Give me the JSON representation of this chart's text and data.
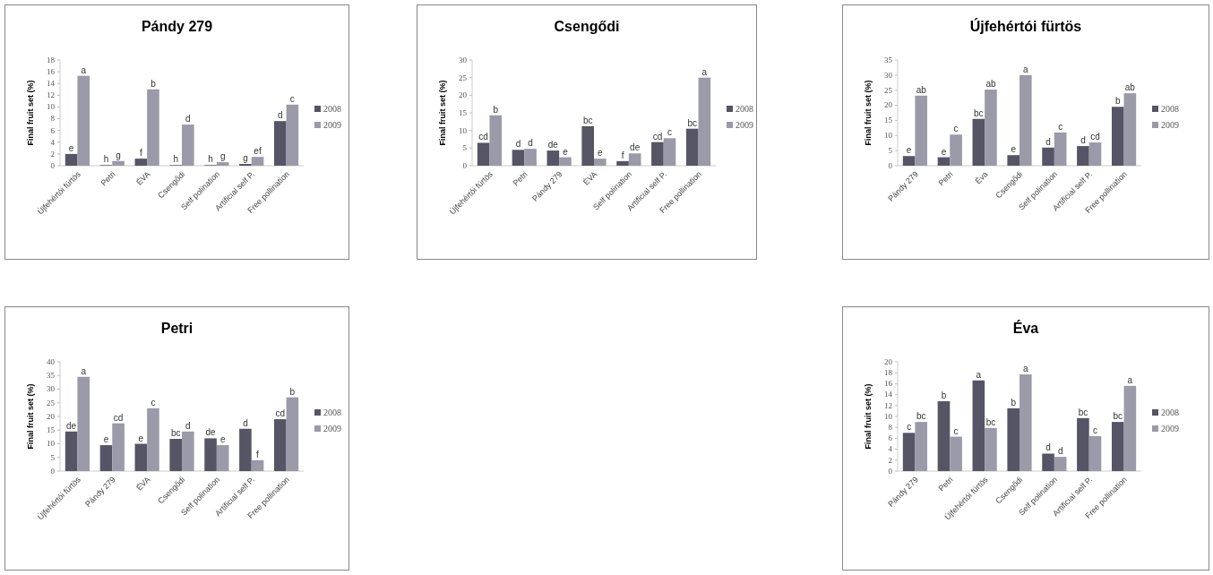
{
  "chart_data": [
    {
      "type": "bar",
      "title": "Pándy 279",
      "ylabel": "Final fruit set (%)",
      "categories": [
        "Újfehértói fürtös",
        "Petri",
        "ÉVA",
        "Csengődi",
        "Self polination",
        "Artificial self P.",
        "Free pollination"
      ],
      "ylim": [
        0,
        18
      ],
      "yticks": [
        0,
        2,
        4,
        6,
        8,
        10,
        12,
        14,
        16,
        18
      ],
      "legend": "right",
      "series": [
        {
          "name": "2008",
          "color": "#555566",
          "values": [
            2,
            0.1,
            1.2,
            0.1,
            0.1,
            0.3,
            7.6
          ],
          "value_labels": [
            "e",
            "h",
            "f",
            "h",
            "h",
            "g",
            "d"
          ]
        },
        {
          "name": "2009",
          "color": "#9a9aa8",
          "values": [
            15.3,
            0.8,
            13,
            7,
            0.6,
            1.5,
            10.4
          ],
          "value_labels": [
            "a",
            "g",
            "b",
            "d",
            "g",
            "ef",
            "c"
          ]
        }
      ]
    },
    {
      "type": "bar",
      "title": "Csengődi",
      "ylabel": "Final fruit set (%)",
      "categories": [
        "Újfehértói fürtös",
        "Petri",
        "Pándy 279",
        "ÉVA",
        "Self polination",
        "Artificial self P.",
        "Free pollination"
      ],
      "ylim": [
        0,
        30
      ],
      "yticks": [
        0,
        5,
        10,
        15,
        20,
        25,
        30
      ],
      "legend": "right",
      "series": [
        {
          "name": "2008",
          "color": "#555566",
          "values": [
            6.5,
            4.5,
            4.3,
            11.2,
            1.3,
            6.7,
            10.5
          ],
          "value_labels": [
            "cd",
            "d",
            "de",
            "bc",
            "f",
            "cd",
            "bc"
          ]
        },
        {
          "name": "2009",
          "color": "#9a9aa8",
          "values": [
            14.3,
            4.8,
            2.4,
            2,
            3.5,
            7.8,
            25
          ],
          "value_labels": [
            "b",
            "d",
            "e",
            "e",
            "de",
            "c",
            "a"
          ]
        }
      ]
    },
    {
      "type": "bar",
      "title": "Újfehértói fürtös",
      "ylabel": "Final fruit set (%)",
      "categories": [
        "Pándy 279",
        "Petri",
        "Éva",
        "Csengődi",
        "Self polination",
        "Artificial self P.",
        "Free pollination"
      ],
      "ylim": [
        0,
        35
      ],
      "yticks": [
        0,
        5,
        10,
        15,
        20,
        25,
        30,
        35
      ],
      "legend": "right",
      "series": [
        {
          "name": "2008",
          "color": "#555566",
          "values": [
            3.2,
            2.8,
            15.5,
            3.5,
            6,
            6.5,
            19.5
          ],
          "value_labels": [
            "e",
            "e",
            "bc",
            "e",
            "d",
            "d",
            "b"
          ]
        },
        {
          "name": "2009",
          "color": "#9a9aa8",
          "values": [
            23.2,
            10.3,
            25.2,
            30,
            11,
            7.7,
            24
          ],
          "value_labels": [
            "ab",
            "c",
            "ab",
            "a",
            "c",
            "cd",
            "ab"
          ]
        }
      ]
    },
    {
      "type": "bar",
      "title": "Petri",
      "ylabel": "Final fruit set (%)",
      "categories": [
        "Újfehértói fürtös",
        "Pándy 279",
        "ÉVA",
        "Csengődi",
        "Self polination",
        "Artificial self P.",
        "Free pollination"
      ],
      "ylim": [
        0,
        40
      ],
      "yticks": [
        0,
        5,
        10,
        15,
        20,
        25,
        30,
        35,
        40
      ],
      "legend": "right",
      "series": [
        {
          "name": "2008",
          "color": "#555566",
          "values": [
            14.5,
            9.5,
            10,
            11.8,
            12,
            15.5,
            19
          ],
          "value_labels": [
            "de",
            "e",
            "e",
            "bc",
            "de",
            "d",
            "cd"
          ]
        },
        {
          "name": "2009",
          "color": "#9a9aa8",
          "values": [
            34.5,
            17.5,
            23,
            14.5,
            9.5,
            4,
            27
          ],
          "value_labels": [
            "a",
            "cd",
            "c",
            "d",
            "e",
            "f",
            "b"
          ]
        }
      ]
    },
    {
      "type": "bar",
      "title": "Éva",
      "ylabel": "Final fruit set (%)",
      "categories": [
        "Pándy 279",
        "Petri",
        "Újfehértói fürtös",
        "Csengődi",
        "Self polination",
        "Artificial self P.",
        "Free pollination"
      ],
      "ylim": [
        0,
        20
      ],
      "yticks": [
        0,
        2,
        4,
        6,
        8,
        10,
        12,
        14,
        16,
        18,
        20
      ],
      "legend": "right",
      "series": [
        {
          "name": "2008",
          "color": "#555566",
          "values": [
            7,
            12.8,
            16.6,
            11.5,
            3.2,
            9.7,
            9
          ],
          "value_labels": [
            "c",
            "b",
            "a",
            "b",
            "d",
            "bc",
            "bc"
          ]
        },
        {
          "name": "2009",
          "color": "#9a9aa8",
          "values": [
            9,
            6.3,
            7.9,
            17.7,
            2.6,
            6.4,
            15.6
          ],
          "value_labels": [
            "bc",
            "c",
            "bc",
            "a",
            "d",
            "c",
            "a"
          ]
        }
      ]
    }
  ]
}
